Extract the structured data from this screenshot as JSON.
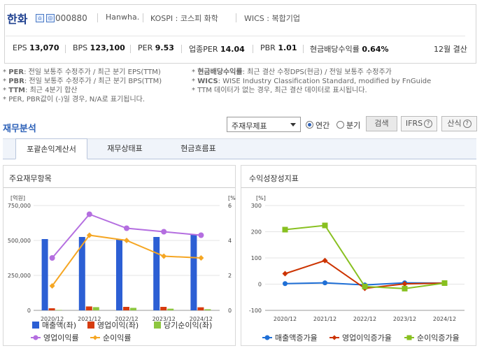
{
  "company": {
    "name": "한화",
    "code": "000880",
    "eng_name": "Hanwha.",
    "market": "KOSPI : 코스피 화학",
    "wics": "WICS : 복합기업",
    "metrics": [
      {
        "label": "EPS",
        "value": "13,070"
      },
      {
        "label": "BPS",
        "value": "123,100"
      },
      {
        "label": "PER",
        "value": "9.53"
      },
      {
        "label": "업종PER",
        "value": "14.04"
      },
      {
        "label": "PBR",
        "value": "1.01"
      },
      {
        "label": "현금배당수익률",
        "value": "0.64%"
      }
    ],
    "period": "12월 결산"
  },
  "notes": {
    "per_key": "PER",
    "per_text": ": 전일 보통주 수정주가 / 최근 분기 EPS(TTM)",
    "pbr_key": "PBR",
    "pbr_text": ": 전일 보통주 수정주가 / 최근 분기 BPS(TTM)",
    "ttm_key": "TTM",
    "ttm_text": ": 최근 4분기 합산",
    "neg_text": "PER, PBR값이 (-)일 경우, N/A로 표기됩니다.",
    "div_key": "현금배당수익률",
    "div_text": ": 최근 결산 수정DPS(현금) / 전일 보통주 수정주가",
    "wics_key": "WICS",
    "wics_text": ": WISE Industry Classification Standard, modified by FnGuide",
    "ttm_missing": "TTM 데이터가 없는 경우, 최근 결산 데이터로 표시됩니다."
  },
  "section": {
    "title": "재무분석",
    "select_value": "주재무제표",
    "radio_annual": "연간",
    "radio_quarter": "분기",
    "search_btn": "검색",
    "ifrs_btn": "IFRS",
    "calc_btn": "산식",
    "help": "?"
  },
  "tabs": [
    "포괄손익계산서",
    "재무상태표",
    "현금흐름표"
  ],
  "colors": {
    "blue": "#2c5fd4",
    "red": "#d63c0f",
    "green": "#8dc63f",
    "purple": "#b46ee0",
    "orange": "#f5a623",
    "line_blue": "#1f6fd6",
    "line_red": "#cc3300",
    "line_green": "#88c020"
  },
  "chart_data": [
    {
      "type": "bar",
      "title": "주요재무항목",
      "categories": [
        "2020/12",
        "2021/12",
        "2022/12",
        "2023/12",
        "2024/12"
      ],
      "y_left_unit": "[억원]",
      "y_right_unit": "[%]",
      "ylim_left": [
        0,
        750000
      ],
      "ylim_right": [
        0,
        6
      ],
      "left_ticks": [
        "750,000",
        "500,000",
        "250,000",
        "0"
      ],
      "right_ticks": [
        "6",
        "4",
        "2",
        "0"
      ],
      "series": [
        {
          "name": "매출액(좌)",
          "kind": "bar",
          "values": [
            510000,
            525000,
            510000,
            525000,
            545000
          ]
        },
        {
          "name": "영업이익(좌)",
          "kind": "bar",
          "values": [
            15000,
            28000,
            25000,
            25000,
            22000
          ]
        },
        {
          "name": "당기순이익(좌)",
          "kind": "bar",
          "values": [
            3000,
            23000,
            18000,
            12000,
            8000
          ]
        },
        {
          "name": "영업이익률",
          "kind": "line",
          "axis": "right",
          "values": [
            3.0,
            5.5,
            4.7,
            4.5,
            4.3
          ]
        },
        {
          "name": "순이익률",
          "kind": "line",
          "axis": "right",
          "values": [
            1.4,
            4.3,
            4.0,
            3.1,
            3.0
          ]
        }
      ]
    },
    {
      "type": "line",
      "title": "수익성장성지표",
      "categories": [
        "2020/12",
        "2021/12",
        "2022/12",
        "2023/12",
        "2024/12"
      ],
      "y_unit": "[%]",
      "ylim": [
        -100,
        300
      ],
      "ticks": [
        "300",
        "200",
        "100",
        "0",
        "-100"
      ],
      "series": [
        {
          "name": "매출액증가율",
          "values": [
            2,
            5,
            -3,
            5,
            4
          ]
        },
        {
          "name": "영업이익증가율",
          "values": [
            40,
            90,
            -16,
            1,
            4
          ]
        },
        {
          "name": "순이익증가율",
          "values": [
            208,
            224,
            -9,
            -17,
            4
          ]
        }
      ]
    }
  ]
}
